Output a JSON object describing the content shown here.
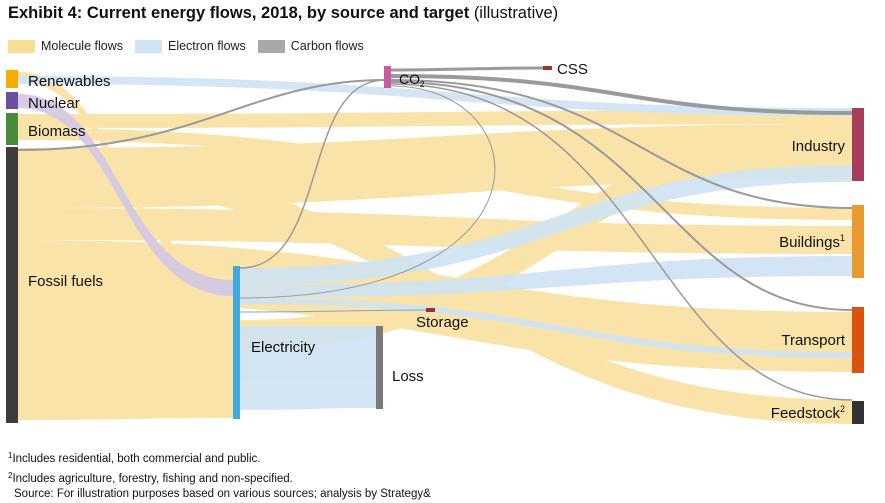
{
  "title": {
    "bold": "Exhibit 4: Current energy flows, 2018, by source and target",
    "light": "(illustrative)"
  },
  "legend": [
    {
      "label": "Molecule flows",
      "color": "#f8dd95"
    },
    {
      "label": "Electron flows",
      "color": "#cfe3f4"
    },
    {
      "label": "Carbon flows",
      "color": "#a8a8a8"
    }
  ],
  "sources": {
    "renewables": {
      "label": "Renewables",
      "color": "#f5ab00"
    },
    "nuclear": {
      "label": "Nuclear",
      "color": "#6a4fa0"
    },
    "biomass": {
      "label": "Biomass",
      "color": "#4a8a3c"
    },
    "fossil": {
      "label": "Fossil fuels",
      "color": "#3c3c3c"
    }
  },
  "intermediates": {
    "electricity": {
      "label": "Electricity",
      "color": "#3fa9dc"
    },
    "co2": {
      "label": "CO",
      "sub": "2",
      "color": "#cc5aa0"
    },
    "css": {
      "label": "CSS",
      "color": "#a0322a"
    },
    "storage": {
      "label": "Storage",
      "color": "#a0322a"
    },
    "loss": {
      "label": "Loss",
      "color": "#7a7a7a"
    }
  },
  "targets": {
    "industry": {
      "label": "Industry",
      "sup": "",
      "color": "#a83c5c"
    },
    "buildings": {
      "label": "Buildings",
      "sup": "1",
      "color": "#e89c30"
    },
    "transport": {
      "label": "Transport",
      "sup": "",
      "color": "#d9520f"
    },
    "feedstock": {
      "label": "Feedstock",
      "sup": "2",
      "color": "#333333"
    }
  },
  "flow_colors": {
    "molecule": "#f8dd95",
    "electron": "#cfe3f4",
    "carbon": "#9a9a9a",
    "nuclear_flow": "#d2c6e6"
  },
  "notes": {
    "n1_mark": "1",
    "n1": "Includes residential, both commercial and public.",
    "n2_mark": "2",
    "n2": "Includes agriculture, forestry, fishing and non-specified.",
    "source": "Source: For illustration purposes based on various sources; analysis by Strategy&"
  }
}
